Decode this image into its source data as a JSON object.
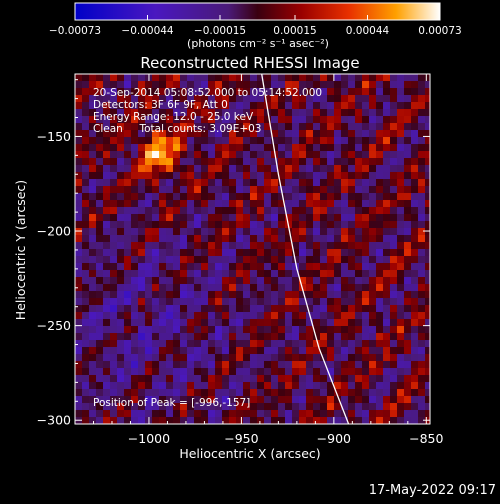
{
  "chart_data": {
    "type": "heatmap",
    "title": "Reconstructed RHESSI Image",
    "xlabel": "Heliocentric X (arcsec)",
    "ylabel": "Heliocentric Y (arcsec)",
    "xlim": [
      -1040,
      -848
    ],
    "ylim": [
      -302,
      -117
    ],
    "xticks": [
      -1000,
      -950,
      -900,
      -850
    ],
    "yticks": [
      -150,
      -200,
      -250,
      -300
    ],
    "xtick_labels": [
      "−1000",
      "−950",
      "−900",
      "−850"
    ],
    "ytick_labels": [
      "−150",
      "−200",
      "−250",
      "−300"
    ],
    "colorbar": {
      "ticks": [
        -0.00073,
        -0.00044,
        -0.00015,
        0.00015,
        0.00044,
        0.00073
      ],
      "tick_labels": [
        "−0.00073",
        "−0.00044",
        "−0.00015",
        "0.00015",
        "0.00044",
        "0.00073"
      ],
      "range": [
        -0.00073,
        0.00073
      ],
      "unit_label": "(photons cm⁻² s⁻¹ asec⁻²)"
    },
    "annotations": [
      "20-Sep-2014 05:08:52.000 to 05:14:52.000",
      "Detectors: 3F 6F 9F, Att 0",
      "Energy Range: 12.0 - 25.0 keV",
      "Clean     Total counts: 3.09E+03"
    ],
    "peak_label": "Position of Peak = [-996,-157]",
    "peak": {
      "x": -996,
      "y": -157
    },
    "limb_points": [
      [
        -939,
        -117
      ],
      [
        -930,
        -170
      ],
      [
        -920,
        -220
      ],
      [
        -908,
        -262
      ],
      [
        -892,
        -302
      ]
    ],
    "grid": false
  },
  "footer": {
    "timestamp": "17-May-2022 09:17"
  }
}
